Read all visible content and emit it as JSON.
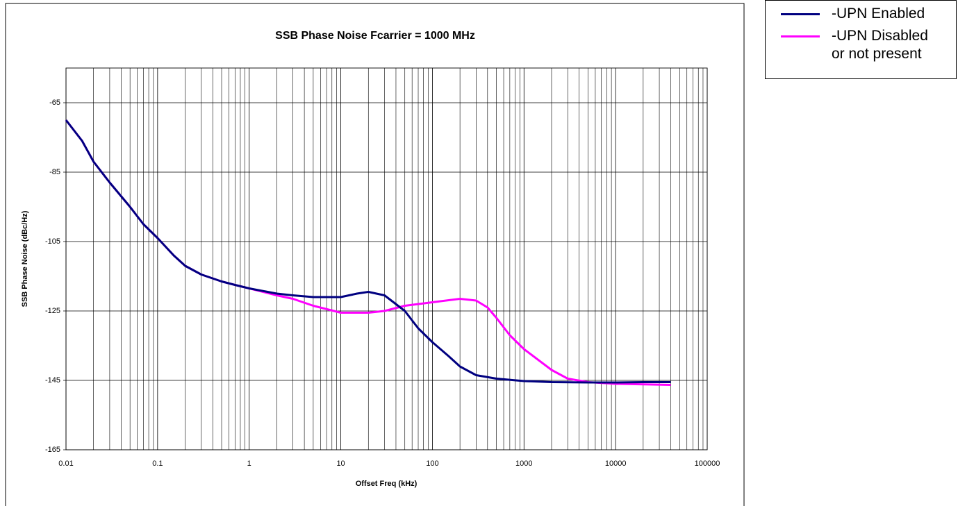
{
  "chart_data": {
    "type": "line",
    "title": "SSB Phase Noise Fcarrier = 1000 MHz",
    "xlabel": "Offset Freq (kHz)",
    "ylabel": "SSB Phase Noise (dBc/Hz)",
    "xscale": "log",
    "xlim": [
      0.01,
      100000
    ],
    "xticks": [
      0.01,
      0.1,
      1,
      10,
      100,
      1000,
      10000,
      100000
    ],
    "xminorticks": [
      0.02,
      0.03,
      0.04,
      0.05,
      0.06,
      0.07,
      0.08,
      0.09,
      0.2,
      0.3,
      0.4,
      0.5,
      0.6,
      0.7,
      0.8,
      0.9,
      2,
      3,
      4,
      5,
      6,
      7,
      8,
      9,
      20,
      30,
      40,
      50,
      60,
      70,
      80,
      90,
      200,
      300,
      400,
      500,
      600,
      700,
      800,
      900,
      2000,
      3000,
      4000,
      5000,
      6000,
      7000,
      8000,
      9000,
      20000,
      30000,
      40000,
      50000,
      60000,
      70000,
      80000,
      90000
    ],
    "ylim": [
      -165,
      -55
    ],
    "yticks": [
      -165,
      -145,
      -125,
      -105,
      -85,
      -65
    ],
    "grid": true,
    "legend": "right",
    "series": [
      {
        "name": "-UPN Enabled",
        "color": "#000080",
        "x": [
          0.01,
          0.015,
          0.02,
          0.03,
          0.05,
          0.07,
          0.1,
          0.15,
          0.2,
          0.3,
          0.5,
          0.7,
          1,
          2,
          3,
          5,
          10,
          15,
          20,
          30,
          50,
          70,
          100,
          150,
          200,
          300,
          500,
          1000,
          2000,
          5000,
          10000,
          20000,
          40000
        ],
        "values": [
          -70,
          -76,
          -82,
          -88,
          -95,
          -100,
          -104,
          -109,
          -112,
          -114.5,
          -116.5,
          -117.5,
          -118.5,
          -120,
          -120.5,
          -121,
          -121,
          -120,
          -119.5,
          -120.5,
          -125,
          -130,
          -134,
          -138,
          -141,
          -143.5,
          -144.5,
          -145.2,
          -145.5,
          -145.6,
          -145.6,
          -145.5,
          -145.5
        ]
      },
      {
        "name": "-UPN Disabled or not present",
        "color": "#ff00ff",
        "x": [
          0.01,
          0.015,
          0.02,
          0.03,
          0.05,
          0.07,
          0.1,
          0.15,
          0.2,
          0.3,
          0.5,
          0.7,
          1,
          2,
          3,
          5,
          10,
          20,
          30,
          50,
          100,
          200,
          300,
          400,
          500,
          700,
          1000,
          2000,
          3000,
          5000,
          10000,
          40000
        ],
        "values": [
          -70,
          -76,
          -82,
          -88,
          -95,
          -100,
          -104,
          -109,
          -112,
          -114.5,
          -116.5,
          -117.5,
          -118.5,
          -120.5,
          -121.5,
          -123.5,
          -125.5,
          -125.5,
          -125,
          -123.5,
          -122.5,
          -121.5,
          -122,
          -124,
          -127,
          -132,
          -136,
          -142,
          -144.5,
          -145.5,
          -146,
          -146.3
        ]
      }
    ]
  }
}
